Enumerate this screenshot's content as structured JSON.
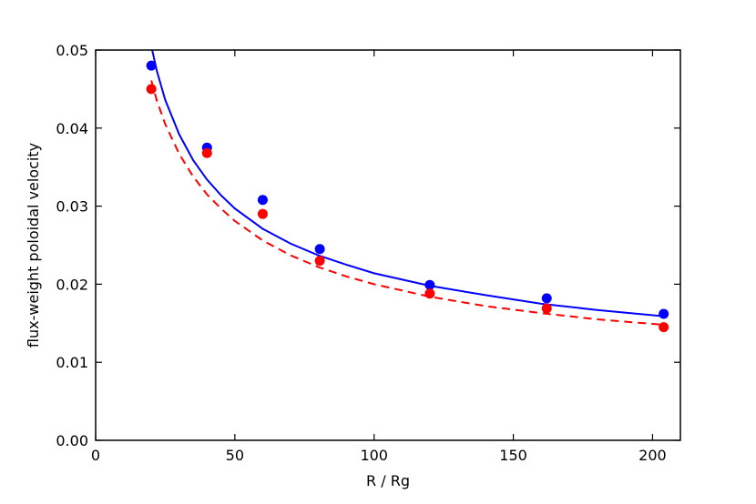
{
  "chart_data": {
    "type": "scatter",
    "title": "",
    "xlabel": "R / Rg",
    "ylabel": "flux-weight poloidal velocity",
    "xlim": [
      0,
      210
    ],
    "ylim": [
      0,
      0.05
    ],
    "xticks": [
      0,
      50,
      100,
      150,
      200
    ],
    "xtick_labels": [
      "0",
      "50",
      "100",
      "150",
      "200"
    ],
    "yticks": [
      0,
      0.01,
      0.02,
      0.03,
      0.04,
      0.05
    ],
    "ytick_labels": [
      "0.00",
      "0.01",
      "0.02",
      "0.03",
      "0.04",
      "0.05"
    ],
    "grid": false,
    "legend": "none",
    "series": [
      {
        "color": "#0000ff",
        "marker": "circle",
        "points": [
          {
            "x": 20,
            "y": 0.048
          },
          {
            "x": 40,
            "y": 0.0375
          },
          {
            "x": 60,
            "y": 0.0308
          },
          {
            "x": 80.5,
            "y": 0.0245
          },
          {
            "x": 120,
            "y": 0.0199
          },
          {
            "x": 162,
            "y": 0.0182
          },
          {
            "x": 204,
            "y": 0.0162
          }
        ],
        "fit": {
          "style": "solid",
          "x": [
            20,
            22,
            25,
            30,
            35,
            40,
            45,
            50,
            60,
            70,
            80,
            90,
            100,
            120,
            140,
            160,
            180,
            204
          ],
          "y": [
            0.0505,
            0.0473,
            0.0436,
            0.0392,
            0.0359,
            0.0334,
            0.0314,
            0.0297,
            0.0271,
            0.0252,
            0.0237,
            0.0225,
            0.0214,
            0.0198,
            0.0186,
            0.0175,
            0.0167,
            0.0159
          ]
        }
      },
      {
        "color": "#ff0000",
        "marker": "circle",
        "points": [
          {
            "x": 20,
            "y": 0.045
          },
          {
            "x": 40,
            "y": 0.0368
          },
          {
            "x": 60,
            "y": 0.029
          },
          {
            "x": 80.5,
            "y": 0.023
          },
          {
            "x": 120,
            "y": 0.0188
          },
          {
            "x": 162,
            "y": 0.0169
          },
          {
            "x": 204,
            "y": 0.0145
          }
        ],
        "fit": {
          "style": "dashed",
          "x": [
            20,
            22,
            25,
            30,
            35,
            40,
            45,
            50,
            60,
            70,
            80,
            90,
            100,
            120,
            140,
            160,
            180,
            204
          ],
          "y": [
            0.0461,
            0.0435,
            0.0405,
            0.0367,
            0.0338,
            0.0315,
            0.0297,
            0.0281,
            0.0256,
            0.0237,
            0.0222,
            0.021,
            0.02,
            0.0184,
            0.0172,
            0.0163,
            0.0155,
            0.0148
          ]
        }
      }
    ]
  }
}
